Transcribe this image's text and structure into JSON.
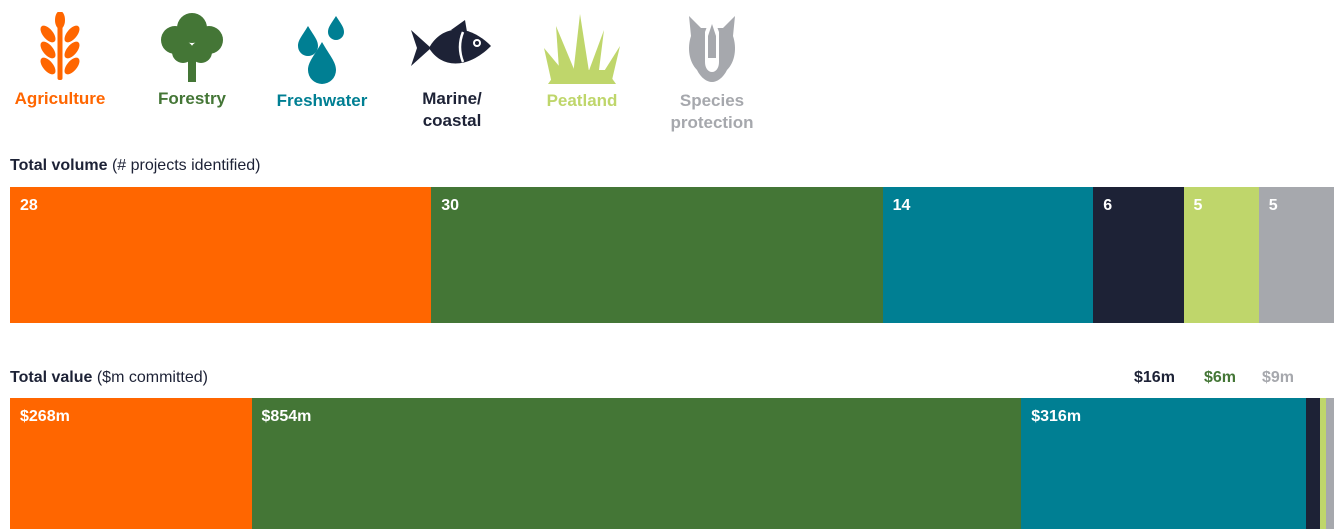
{
  "legend": [
    {
      "key": "agriculture",
      "label": "Agriculture",
      "color": "#ff6600",
      "icon": "wheat-icon"
    },
    {
      "key": "forestry",
      "label": "Forestry",
      "color": "#447636",
      "icon": "tree-icon"
    },
    {
      "key": "freshwater",
      "label": "Freshwater",
      "color": "#007f93",
      "icon": "water-drops-icon"
    },
    {
      "key": "marine",
      "label": "Marine/\ncoastal",
      "color": "#1d2236",
      "icon": "fish-icon"
    },
    {
      "key": "peatland",
      "label": "Peatland",
      "color": "#bfd66b",
      "icon": "grass-icon"
    },
    {
      "key": "species",
      "label": "Species\nprotection",
      "color": "#a6a8ad",
      "icon": "rhino-icon"
    }
  ],
  "chart_data": [
    {
      "type": "bar",
      "orientation": "horizontal-stacked",
      "title_bold": "Total volume",
      "title_rest": " (# projects identified)",
      "categories": [
        "Agriculture",
        "Forestry",
        "Freshwater",
        "Marine/coastal",
        "Peatland",
        "Species protection"
      ],
      "values": [
        28,
        30,
        14,
        6,
        5,
        5
      ],
      "labels": [
        "28",
        "30",
        "14",
        "6",
        "5",
        "5"
      ]
    },
    {
      "type": "bar",
      "orientation": "horizontal-stacked",
      "title_bold": "Total value",
      "title_rest": " ($m committed)",
      "categories": [
        "Agriculture",
        "Forestry",
        "Freshwater",
        "Marine/coastal",
        "Peatland",
        "Species protection"
      ],
      "values": [
        268,
        854,
        316,
        16,
        6,
        9
      ],
      "labels": [
        "$268m",
        "$854m",
        "$316m",
        "$16m",
        "$6m",
        "$9m"
      ]
    }
  ]
}
